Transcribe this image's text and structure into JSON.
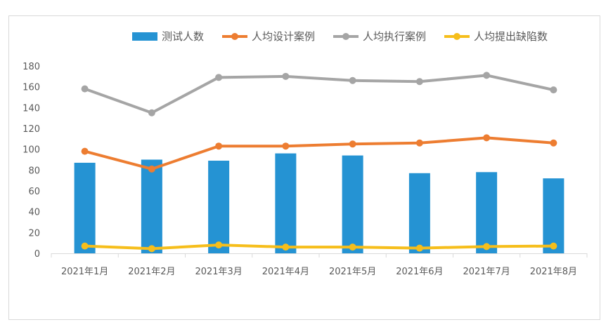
{
  "chart_data": {
    "type": "bar",
    "categories": [
      "2021年1月",
      "2021年2月",
      "2021年3月",
      "2021年4月",
      "2021年5月",
      "2021年6月",
      "2021年7月",
      "2021年8月"
    ],
    "ylim": [
      0,
      180
    ],
    "yticks": [
      0,
      20,
      40,
      60,
      80,
      100,
      120,
      140,
      160,
      180
    ],
    "grid": false,
    "legend_position": "top-right",
    "series": [
      {
        "name": "测试人数",
        "kind": "bar",
        "color": "#2593d3",
        "values": [
          87,
          90,
          89,
          96,
          94,
          77,
          78,
          72
        ]
      },
      {
        "name": "人均设计案例",
        "kind": "line",
        "color": "#ed7d31",
        "values": [
          98,
          81,
          103,
          103,
          105,
          106,
          111,
          106
        ]
      },
      {
        "name": "人均执行案例",
        "kind": "line",
        "color": "#a5a5a5",
        "values": [
          158,
          135,
          169,
          170,
          166,
          165,
          171,
          157
        ]
      },
      {
        "name": "人均提出缺陷数",
        "kind": "line",
        "color": "#f6be1b",
        "values": [
          7,
          4.5,
          8,
          6,
          6,
          5,
          6.5,
          7
        ]
      }
    ]
  }
}
